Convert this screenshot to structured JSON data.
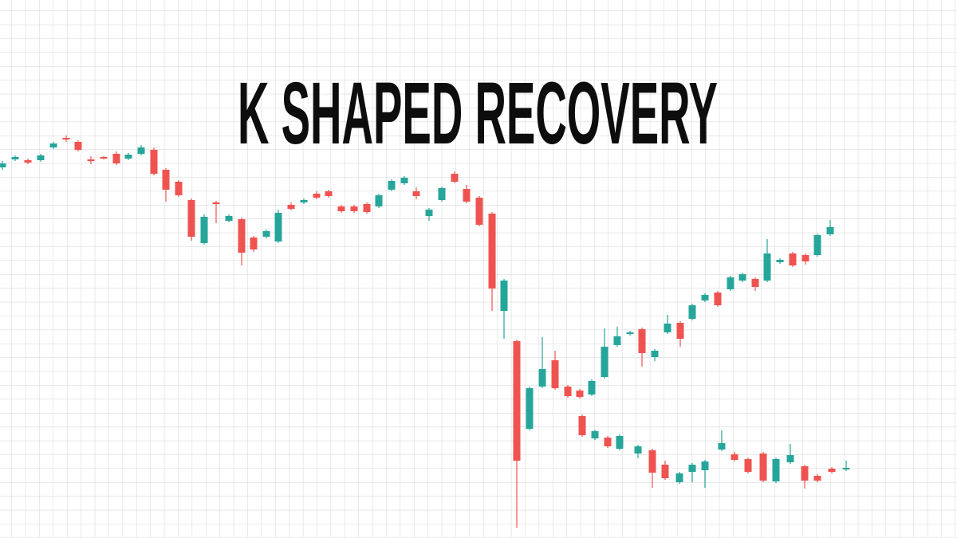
{
  "chart_data": {
    "type": "candlestick",
    "title": "K SHAPED RECOVERY",
    "grid": true,
    "up_color": "#26a69a",
    "down_color": "#ef5350",
    "x": [
      3,
      19,
      35,
      51,
      67,
      83,
      98,
      114,
      130,
      146,
      161,
      177,
      193,
      208,
      224,
      240,
      256,
      271,
      287,
      303,
      318,
      334,
      349,
      365,
      381,
      397,
      412,
      428,
      444,
      460,
      475,
      491,
      507,
      522,
      538,
      554,
      570,
      585,
      601,
      617,
      632,
      648,
      664,
      680,
      696,
      712,
      727,
      742,
      758,
      774,
      790,
      805,
      821,
      837,
      853,
      868,
      884,
      900,
      916,
      931,
      947,
      962,
      978,
      994,
      1010,
      1025,
      1041,
      730,
      746,
      762,
      777,
      800,
      818,
      834,
      852,
      868,
      884,
      905,
      921,
      938,
      957,
      973,
      991,
      1009,
      1025,
      1043,
      1061
    ],
    "open": [
      465,
      475,
      474,
      474,
      490,
      502,
      497,
      475,
      478,
      482,
      476,
      482,
      487,
      462,
      447,
      424,
      370,
      421,
      398,
      400,
      377,
      378,
      372,
      418,
      421,
      432,
      435,
      416,
      416,
      419,
      416,
      437,
      445,
      435,
      404,
      424,
      457,
      438,
      427,
      407,
      285,
      247,
      137,
      190,
      223,
      190,
      185,
      180,
      202,
      242,
      256,
      262,
      227,
      258,
      270,
      275,
      298,
      308,
      312,
      323,
      325,
      323,
      346,
      357,
      355,
      355,
      381,
      153,
      125,
      126,
      112,
      106,
      110,
      92,
      70,
      83,
      85,
      111,
      105,
      99,
      106,
      71,
      95,
      90,
      78,
      87,
      86
    ],
    "high": [
      473,
      480,
      476,
      482,
      497,
      505,
      499,
      479,
      479,
      485,
      483,
      493,
      490,
      464,
      449,
      426,
      406,
      423,
      406,
      402,
      379,
      387,
      412,
      421,
      426,
      435,
      437,
      418,
      418,
      421,
      432,
      450,
      454,
      440,
      414,
      441,
      460,
      443,
      429,
      409,
      325,
      249,
      190,
      252,
      235,
      192,
      187,
      199,
      263,
      265,
      260,
      264,
      237,
      280,
      272,
      294,
      307,
      310,
      329,
      333,
      327,
      375,
      351,
      359,
      357,
      382,
      399,
      155,
      136,
      128,
      130,
      117,
      112,
      97,
      83,
      94,
      98,
      135,
      108,
      101,
      108,
      101,
      118,
      92,
      80,
      89,
      97
    ],
    "low": [
      462,
      473,
      469,
      472,
      488,
      497,
      485,
      469,
      475,
      468,
      474,
      480,
      455,
      422,
      428,
      373,
      368,
      395,
      396,
      342,
      359,
      376,
      370,
      411,
      419,
      425,
      427,
      408,
      408,
      407,
      414,
      435,
      443,
      425,
      398,
      422,
      445,
      420,
      391,
      285,
      250,
      13,
      135,
      188,
      186,
      176,
      175,
      178,
      200,
      240,
      254,
      215,
      222,
      256,
      240,
      273,
      296,
      290,
      310,
      321,
      310,
      321,
      344,
      340,
      343,
      353,
      379,
      127,
      123,
      113,
      110,
      100,
      63,
      73,
      68,
      70,
      63,
      109,
      96,
      81,
      70,
      69,
      93,
      62,
      70,
      81,
      84
    ],
    "close": [
      470,
      478,
      471,
      480,
      495,
      500,
      487,
      473,
      476,
      470,
      481,
      490,
      457,
      437,
      430,
      378,
      403,
      419,
      404,
      358,
      362,
      385,
      408,
      413,
      424,
      427,
      429,
      410,
      410,
      409,
      430,
      448,
      452,
      429,
      412,
      439,
      447,
      422,
      393,
      313,
      323,
      97,
      188,
      212,
      188,
      178,
      177,
      197,
      240,
      253,
      258,
      232,
      235,
      269,
      250,
      292,
      305,
      292,
      327,
      331,
      315,
      357,
      349,
      342,
      347,
      380,
      390,
      129,
      134,
      115,
      128,
      115,
      82,
      75,
      81,
      92,
      96,
      119,
      98,
      83,
      72,
      99,
      104,
      72,
      72,
      83,
      88
    ]
  }
}
